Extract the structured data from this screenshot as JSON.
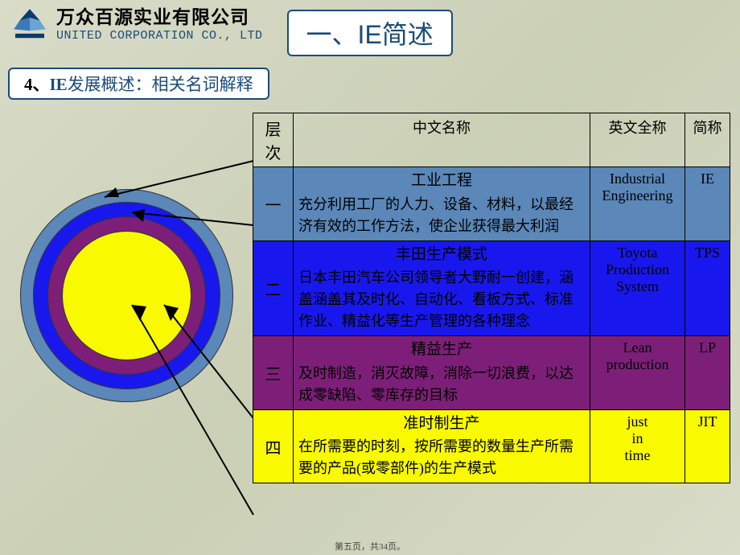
{
  "company": {
    "cn": "万众百源实业有限公司",
    "en": "UNITED CORPORATION CO., LTD",
    "logo_colors": {
      "top": "#0a3b6e",
      "left": "#3a7ab8",
      "right": "#6ba3d4",
      "base": "#0a3b6e"
    }
  },
  "page_title": "一、IE简述",
  "subtitle": {
    "num": "4、",
    "bold": "IE",
    "rest": "发展概述：相关名词解释"
  },
  "circles": {
    "colors": [
      "#5b87b9",
      "#1818ee",
      "#7d1f78",
      "#f9f900"
    ]
  },
  "table": {
    "headers": [
      "层次",
      "中文名称",
      "英文全称",
      "简称"
    ],
    "rows": [
      {
        "level": "一",
        "name_title": "工业工程",
        "desc": "充分利用工厂的人力、设备、材料，以最经济有效的工作方法，使企业获得最大利润",
        "en": "Industrial Engineering",
        "abbr": "IE",
        "bg": "#5b87b9",
        "text_color": "#000000"
      },
      {
        "level": "二",
        "name_title": "丰田生产模式",
        "desc": "日本丰田汽车公司领导者大野耐一创建，涵盖涵盖其及时化、自动化、看板方式、标准作业、精益化等生产管理的各种理念",
        "en": "Toyota Production System",
        "abbr": "TPS",
        "bg": "#1818ee",
        "text_color": "#000000"
      },
      {
        "level": "三",
        "name_title": "精益生产",
        "desc": "及时制造，消灭故障，消除一切浪费，以达成零缺陷、零库存的目标",
        "en": "Lean production",
        "abbr": "LP",
        "bg": "#7d1f78",
        "text_color": "#000000"
      },
      {
        "level": "四",
        "name_title": "准时制生产",
        "desc": "在所需要的时刻，按所需要的数量生产所需要的产品(或零部件)的生产模式",
        "en": "just in time",
        "abbr": "JIT",
        "bg": "#f9f900",
        "text_color": "#000000"
      }
    ]
  },
  "footer": "第五页，共34页。"
}
